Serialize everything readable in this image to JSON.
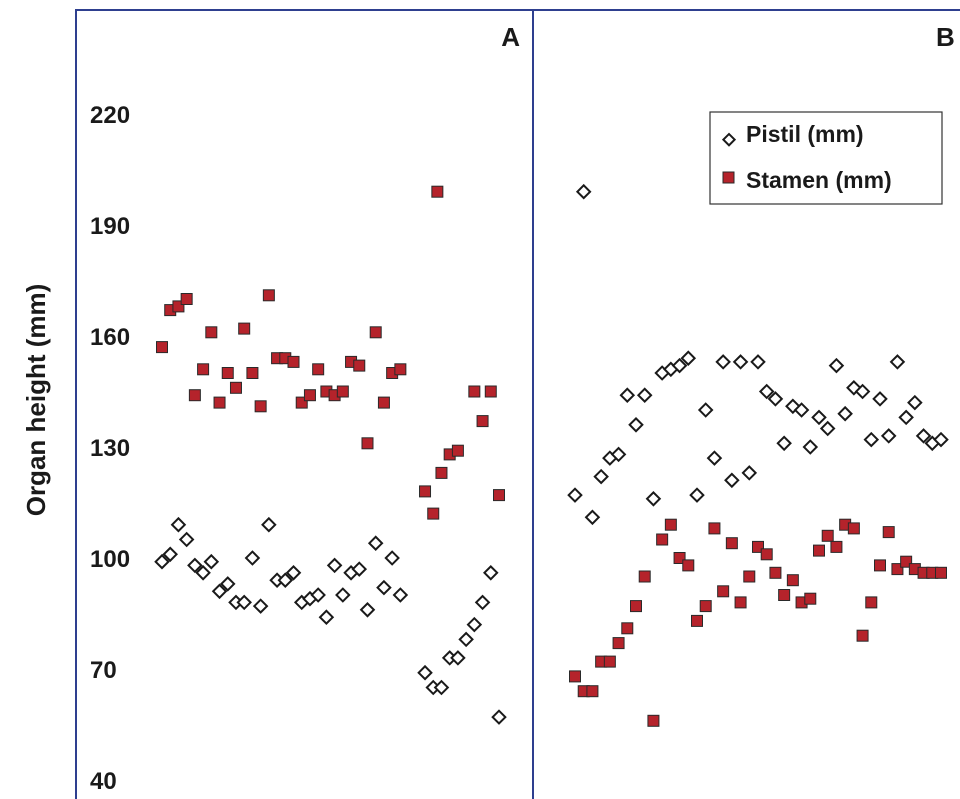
{
  "chart_data": {
    "type": "scatter",
    "ylabel": "Organ height (mm)",
    "ylim": [
      40,
      230
    ],
    "yticks": [
      40,
      70,
      100,
      130,
      160,
      190,
      220
    ],
    "grid": false,
    "legend_position": "top-right of panel B",
    "colors": {
      "pistil_fill": "#ffffff",
      "pistil_edge": "#1a1a1a",
      "stamen_fill": "#b5232b",
      "stamen_edge": "#2a2a2a",
      "frame": "#2e3f8f"
    },
    "legend": [
      {
        "series": "pistil",
        "label": "Pistil (mm)",
        "marker": "diamond"
      },
      {
        "series": "stamen",
        "label": "Stamen (mm)",
        "marker": "square"
      }
    ],
    "panels": [
      {
        "label": "A",
        "x": [
          1,
          2,
          3,
          4,
          5,
          6,
          7,
          8,
          9,
          10,
          11,
          12,
          13,
          14,
          15,
          16,
          17,
          18,
          19,
          20,
          21,
          22,
          23,
          24,
          25,
          26,
          27,
          28,
          29,
          30,
          31,
          32,
          33,
          34,
          35,
          36,
          37,
          38,
          39,
          40,
          41,
          42,
          43,
          44,
          45,
          46,
          47,
          48,
          49,
          50
        ],
        "series": [
          {
            "id": "pistil",
            "name": "Pistil (mm)",
            "values": [
              99,
              101,
              109,
              105,
              98,
              96,
              99,
              91,
              93,
              88,
              88,
              100,
              87,
              109,
              94,
              94,
              96,
              88,
              89,
              90,
              84,
              98,
              90,
              96,
              97,
              86,
              104,
              92,
              100,
              90,
              69,
              65,
              65,
              73,
              73,
              78,
              82,
              88,
              96,
              57
            ]
          },
          {
            "id": "stamen",
            "name": "Stamen (mm)",
            "values": [
              157,
              167,
              168,
              170,
              144,
              151,
              161,
              142,
              150,
              146,
              162,
              150,
              141,
              171,
              154,
              154,
              153,
              142,
              144,
              151,
              145,
              144,
              145,
              153,
              152,
              131,
              161,
              142,
              150,
              151,
              118,
              112,
              123,
              128,
              129,
              145,
              137,
              145,
              117,
              199
            ]
          }
        ],
        "pistil_x": [
          1,
          2,
          3,
          4,
          5,
          6,
          7,
          8,
          9,
          10,
          11,
          12,
          13,
          14,
          15,
          16,
          17,
          18,
          19,
          20,
          21,
          22,
          23,
          24,
          25,
          26,
          27,
          28,
          29,
          30,
          33,
          34,
          35,
          36,
          37,
          38,
          39,
          40,
          41,
          42
        ],
        "stamen_x": [
          1,
          2,
          3,
          4,
          5,
          6,
          7,
          8,
          9,
          10,
          11,
          12,
          13,
          14,
          15,
          16,
          17,
          18,
          19,
          20,
          21,
          22,
          23,
          24,
          25,
          26,
          27,
          28,
          29,
          30,
          33,
          34,
          35,
          36,
          37,
          39,
          40,
          41,
          42,
          34.5
        ]
      },
      {
        "label": "B",
        "pistil_x": [
          1,
          2,
          3,
          4,
          5,
          6,
          7,
          8,
          9,
          10,
          11,
          12,
          13,
          14,
          15,
          16,
          17,
          18,
          19,
          20,
          21,
          22,
          23,
          24,
          25,
          26,
          27,
          28,
          29,
          30,
          31,
          32,
          33,
          34,
          35,
          36,
          37,
          38,
          39,
          40,
          41,
          42,
          43
        ],
        "pistil": [
          117,
          199,
          111,
          122,
          127,
          128,
          144,
          136,
          144,
          116,
          150,
          151,
          152,
          154,
          117,
          140,
          127,
          153,
          121,
          153,
          123,
          153,
          145,
          143,
          131,
          141,
          140,
          130,
          138,
          135,
          152,
          139,
          146,
          145,
          132,
          143,
          133,
          153,
          138,
          142,
          133,
          131,
          132
        ],
        "stamen_x": [
          1,
          2,
          3,
          4,
          5,
          6,
          7,
          8,
          9,
          10,
          11,
          12,
          13,
          14,
          15,
          16,
          17,
          18,
          19,
          20,
          21,
          22,
          23,
          24,
          25,
          26,
          27,
          28,
          29,
          30,
          31,
          32,
          33,
          34,
          35,
          36,
          37,
          38,
          39,
          40,
          41,
          42,
          43
        ],
        "stamen": [
          68,
          64,
          64,
          72,
          72,
          77,
          81,
          87,
          95,
          56,
          105,
          109,
          100,
          98,
          83,
          87,
          108,
          91,
          104,
          88,
          95,
          103,
          101,
          96,
          90,
          94,
          88,
          89,
          102,
          106,
          103,
          109,
          108,
          79,
          88,
          98,
          107,
          97,
          99,
          97,
          96,
          96,
          96
        ]
      }
    ]
  }
}
